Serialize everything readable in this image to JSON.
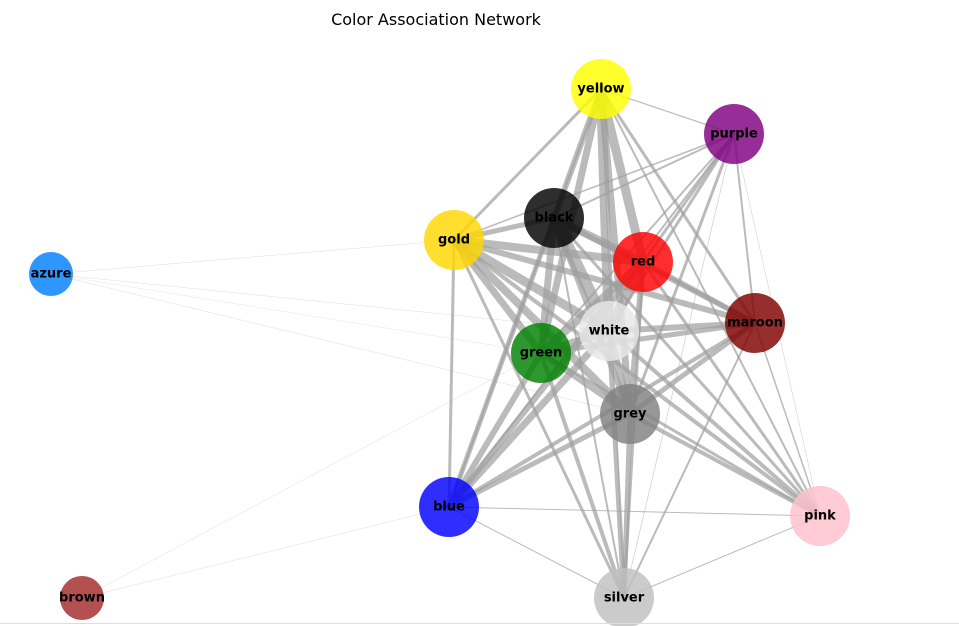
{
  "title": "Color Association Network",
  "nodes": [
    {
      "id": "yellow",
      "label": "yellow",
      "color": "#ffff00",
      "size": "l"
    },
    {
      "id": "purple",
      "label": "purple",
      "color": "#800080",
      "size": "l"
    },
    {
      "id": "black",
      "label": "black",
      "color": "#000000",
      "size": "l"
    },
    {
      "id": "gold",
      "label": "gold",
      "color": "#ffd700",
      "size": "l"
    },
    {
      "id": "red",
      "label": "red",
      "color": "#ff0000",
      "size": "l"
    },
    {
      "id": "azure",
      "label": "azure",
      "color": "#0080ff",
      "size": "s"
    },
    {
      "id": "maroon",
      "label": "maroon",
      "color": "#800000",
      "size": "l"
    },
    {
      "id": "white",
      "label": "white",
      "color": "#e8e8e8",
      "size": "l"
    },
    {
      "id": "green",
      "label": "green",
      "color": "#008000",
      "size": "l"
    },
    {
      "id": "grey",
      "label": "grey",
      "color": "#808080",
      "size": "l"
    },
    {
      "id": "blue",
      "label": "blue",
      "color": "#0000ff",
      "size": "l"
    },
    {
      "id": "pink",
      "label": "pink",
      "color": "#ffc0cb",
      "size": "l"
    },
    {
      "id": "brown",
      "label": "brown",
      "color": "#a52a2a",
      "size": "s"
    },
    {
      "id": "silver",
      "label": "silver",
      "color": "#c0c0c0",
      "size": "l"
    }
  ],
  "edges": [
    [
      "yellow",
      "black",
      6
    ],
    [
      "yellow",
      "red",
      9
    ],
    [
      "yellow",
      "white",
      10
    ],
    [
      "yellow",
      "green",
      7
    ],
    [
      "yellow",
      "grey",
      7
    ],
    [
      "yellow",
      "gold",
      3
    ],
    [
      "yellow",
      "purple",
      1.2
    ],
    [
      "yellow",
      "maroon",
      3
    ],
    [
      "yellow",
      "pink",
      2
    ],
    [
      "yellow",
      "blue",
      2
    ],
    [
      "yellow",
      "silver",
      1
    ],
    [
      "purple",
      "red",
      3
    ],
    [
      "purple",
      "white",
      3
    ],
    [
      "purple",
      "green",
      2
    ],
    [
      "purple",
      "grey",
      3
    ],
    [
      "purple",
      "maroon",
      2
    ],
    [
      "purple",
      "pink",
      0.6
    ],
    [
      "purple",
      "black",
      2
    ],
    [
      "purple",
      "gold",
      1.5
    ],
    [
      "purple",
      "blue",
      2
    ],
    [
      "purple",
      "silver",
      0.8
    ],
    [
      "black",
      "white",
      12
    ],
    [
      "black",
      "red",
      8
    ],
    [
      "black",
      "green",
      7
    ],
    [
      "black",
      "grey",
      6
    ],
    [
      "black",
      "gold",
      5
    ],
    [
      "black",
      "maroon",
      5
    ],
    [
      "black",
      "blue",
      5
    ],
    [
      "black",
      "pink",
      3
    ],
    [
      "black",
      "silver",
      2
    ],
    [
      "gold",
      "red",
      8
    ],
    [
      "gold",
      "white",
      9
    ],
    [
      "gold",
      "green",
      7
    ],
    [
      "gold",
      "grey",
      8
    ],
    [
      "gold",
      "maroon",
      6
    ],
    [
      "gold",
      "blue",
      3
    ],
    [
      "gold",
      "pink",
      4
    ],
    [
      "gold",
      "silver",
      3
    ],
    [
      "gold",
      "azure",
      0.4
    ],
    [
      "red",
      "white",
      10
    ],
    [
      "red",
      "green",
      8
    ],
    [
      "red",
      "grey",
      6
    ],
    [
      "red",
      "maroon",
      5
    ],
    [
      "red",
      "blue",
      6
    ],
    [
      "red",
      "pink",
      3
    ],
    [
      "red",
      "silver",
      3
    ],
    [
      "maroon",
      "white",
      6
    ],
    [
      "maroon",
      "green",
      5
    ],
    [
      "maroon",
      "grey",
      5
    ],
    [
      "maroon",
      "blue",
      4
    ],
    [
      "maroon",
      "pink",
      1.5
    ],
    [
      "maroon",
      "silver",
      2
    ],
    [
      "white",
      "green",
      8
    ],
    [
      "white",
      "grey",
      7
    ],
    [
      "white",
      "blue",
      7
    ],
    [
      "white",
      "pink",
      4
    ],
    [
      "white",
      "silver",
      5
    ],
    [
      "green",
      "grey",
      6
    ],
    [
      "green",
      "blue",
      6
    ],
    [
      "green",
      "pink",
      3
    ],
    [
      "green",
      "silver",
      4
    ],
    [
      "grey",
      "blue",
      5
    ],
    [
      "grey",
      "pink",
      4
    ],
    [
      "grey",
      "silver",
      5
    ],
    [
      "blue",
      "pink",
      1
    ],
    [
      "blue",
      "silver",
      1
    ],
    [
      "pink",
      "silver",
      1
    ],
    [
      "azure",
      "white",
      0.4
    ],
    [
      "azure",
      "grey",
      0.4
    ],
    [
      "azure",
      "green",
      0.3
    ],
    [
      "brown",
      "green",
      0.4
    ],
    [
      "brown",
      "blue",
      0.4
    ]
  ]
}
